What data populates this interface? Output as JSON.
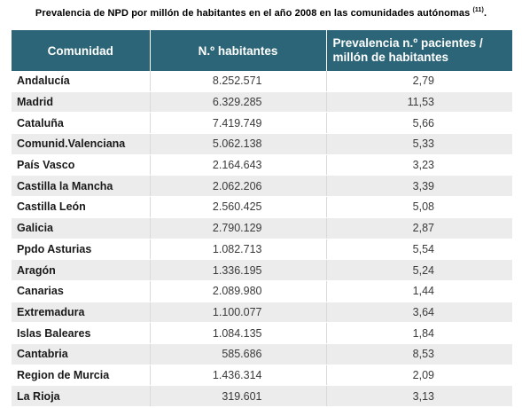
{
  "caption": {
    "text": "Prevalencia de NPD por millón de habitantes en el año 2008 en las comunidades autónomas",
    "ref": "(11)",
    "end": "."
  },
  "table": {
    "headers": [
      "Comunidad",
      "N.º habitantes",
      "Prevalencia n.º pacientes / millón de habitantes"
    ],
    "rows": [
      {
        "comunidad": "Andalucía",
        "habitantes": "8.252.571",
        "prevalencia": "2,79"
      },
      {
        "comunidad": "Madrid",
        "habitantes": "6.329.285",
        "prevalencia": "11,53"
      },
      {
        "comunidad": "Cataluña",
        "habitantes": "7.419.749",
        "prevalencia": "5,66"
      },
      {
        "comunidad": "Comunid.Valenciana",
        "habitantes": "5.062.138",
        "prevalencia": "5,33"
      },
      {
        "comunidad": "País Vasco",
        "habitantes": "2.164.643",
        "prevalencia": "3,23"
      },
      {
        "comunidad": "Castilla la Mancha",
        "habitantes": "2.062.206",
        "prevalencia": "3,39"
      },
      {
        "comunidad": "Castilla León",
        "habitantes": "2.560.425",
        "prevalencia": "5,08"
      },
      {
        "comunidad": "Galicia",
        "habitantes": "2.790.129",
        "prevalencia": "2,87"
      },
      {
        "comunidad": "Ppdo Asturias",
        "habitantes": "1.082.713",
        "prevalencia": "5,54"
      },
      {
        "comunidad": "Aragón",
        "habitantes": "1.336.195",
        "prevalencia": "5,24"
      },
      {
        "comunidad": "Canarias",
        "habitantes": "2.089.980",
        "prevalencia": "1,44"
      },
      {
        "comunidad": "Extremadura",
        "habitantes": "1.100.077",
        "prevalencia": "3,64"
      },
      {
        "comunidad": "Islas Baleares",
        "habitantes": "1.084.135",
        "prevalencia": "1,84"
      },
      {
        "comunidad": "Cantabria",
        "habitantes": "585.686",
        "prevalencia": "8,53"
      },
      {
        "comunidad": "Region de Murcia",
        "habitantes": "1.436.314",
        "prevalencia": "2,09"
      },
      {
        "comunidad": "La Rioja",
        "habitantes": "319.601",
        "prevalencia": "3,13"
      }
    ]
  },
  "colors": {
    "header_bg": "#2b6577",
    "header_text": "#ffffff",
    "stripe": "#ececec"
  }
}
